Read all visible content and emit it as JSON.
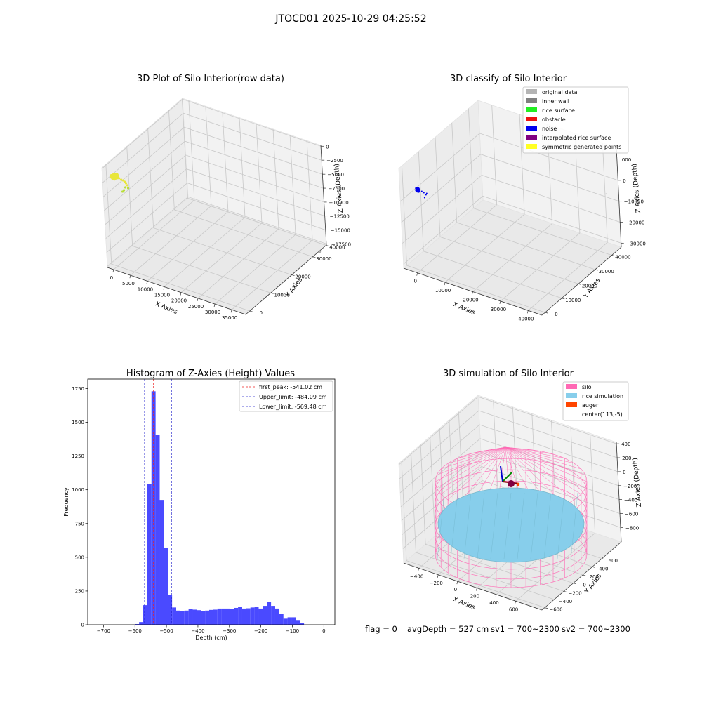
{
  "figure": {
    "suptitle": "JTOCD01 2025-10-29 04:25:52",
    "status_line": {
      "flag": "flag = 0",
      "avg_depth": "avgDepth = 527 cm",
      "sv1": "sv1 = 700~2300",
      "sv2": "sv2 = 700~2300"
    }
  },
  "chart_data": [
    {
      "type": "scatter",
      "projection": "3d",
      "title": "3D Plot of Silo Interior(row data)",
      "xlabel": "X Axies",
      "ylabel": "Y Axies",
      "zlabel": "Z Axies (Depth)",
      "x_ticks": [
        "0",
        "5000",
        "10000",
        "15000",
        "20000",
        "25000",
        "30000",
        "35000"
      ],
      "y_ticks": [
        "0",
        "10000",
        "20000",
        "30000",
        "40000"
      ],
      "z_ticks": [
        "0",
        "−2500",
        "−5000",
        "−7500",
        "−10000",
        "−12500",
        "−15000",
        "−17500"
      ],
      "point_color": "#e8e63a",
      "outlier_color": "#aaaaaa",
      "grid": true
    },
    {
      "type": "scatter",
      "projection": "3d",
      "title": "3D classify of Silo Interior",
      "xlabel": "X Axies",
      "ylabel": "Y Axies",
      "zlabel": "Z Axies (Depth)",
      "x_ticks": [
        "0",
        "10000",
        "20000",
        "30000",
        "40000"
      ],
      "y_ticks": [
        "0",
        "10000",
        "20000",
        "30000",
        "40000"
      ],
      "z_ticks": [
        "0",
        "−10000",
        "−20000",
        "−30000"
      ],
      "z_top_tick": "000",
      "legend": [
        {
          "label": "original data",
          "color": "#b4b4b4"
        },
        {
          "label": "inner wall",
          "color": "#808080"
        },
        {
          "label": "rice surface",
          "color": "#22ee22"
        },
        {
          "label": "obstacle",
          "color": "#ee1111"
        },
        {
          "label": "noise",
          "color": "#0000ee"
        },
        {
          "label": "interpolated rice surface",
          "color": "#800080"
        },
        {
          "label": "symmetric generated points",
          "color": "#ffff22"
        }
      ],
      "legend_position": "top-right",
      "grid": true
    },
    {
      "type": "bar",
      "title": "Histogram of Z-Axies (Height) Values",
      "xlabel": "Depth (cm)",
      "ylabel": "Frequency",
      "xlim": [
        -750,
        35
      ],
      "ylim": [
        0,
        1820
      ],
      "x_ticks": [
        -700,
        -600,
        -500,
        -400,
        -300,
        -200,
        -100,
        0
      ],
      "y_ticks": [
        0,
        250,
        500,
        750,
        1000,
        1250,
        1500,
        1750
      ],
      "x_tick_labels": [
        "−700",
        "−600",
        "−500",
        "−400",
        "−300",
        "−200",
        "−100",
        "0"
      ],
      "y_tick_labels": [
        "0",
        "250",
        "500",
        "750",
        "1000",
        "1250",
        "1500",
        "1750"
      ],
      "bin_start": -600,
      "bin_width": 13.1,
      "values": [
        5,
        20,
        145,
        1045,
        1730,
        1405,
        925,
        570,
        220,
        128,
        105,
        100,
        105,
        118,
        112,
        108,
        102,
        105,
        110,
        112,
        120,
        120,
        120,
        118,
        125,
        132,
        120,
        122,
        128,
        132,
        120,
        140,
        168,
        140,
        120,
        78,
        45,
        55,
        55,
        35,
        15
      ],
      "bar_color": "#4a4aff",
      "lines": [
        {
          "x": -541.02,
          "label": "first_peak: -541.02 cm",
          "color": "#ee2222"
        },
        {
          "x": -484.09,
          "label": "Upper_limit: -484.09 cm",
          "color": "#2222cc"
        },
        {
          "x": -569.48,
          "label": "Lower_limit: -569.48 cm",
          "color": "#2222cc"
        }
      ],
      "legend_position": "top-right"
    },
    {
      "type": "scatter",
      "projection": "3d",
      "title": "3D simulation of Silo Interior",
      "xlabel": "X Axies",
      "ylabel": "Y Axies",
      "zlabel": "Z Axies (Depth)",
      "x_ticks": [
        "−400",
        "−200",
        "0",
        "200",
        "400",
        "600"
      ],
      "y_ticks": [
        "−600",
        "−400",
        "−200",
        "0",
        "200",
        "400",
        "600"
      ],
      "z_ticks": [
        "400",
        "200",
        "0",
        "−200",
        "−400",
        "−600",
        "−800"
      ],
      "legend": [
        {
          "label": "silo",
          "color": "#ff69b4"
        },
        {
          "label": "rice simulation",
          "color": "#87ceeb"
        },
        {
          "label": "auger",
          "color": "#ff4500"
        },
        {
          "label": "center(113,-5)",
          "color": ""
        }
      ],
      "legend_position": "top-right",
      "grid": true
    }
  ]
}
